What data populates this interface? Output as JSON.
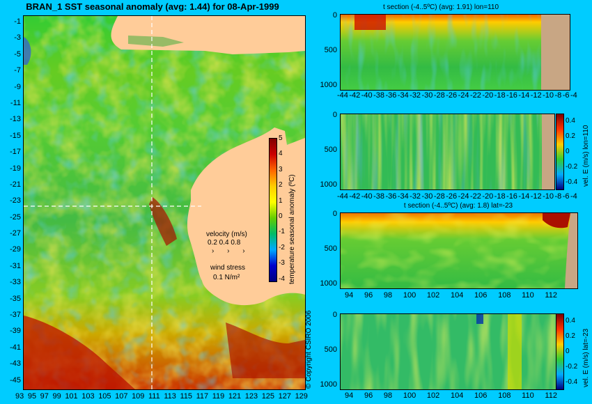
{
  "main_title": "BRAN_1 SST seasonal anomaly (avg: 1.44) for 08-Apr-1999",
  "copyright": "© Copyright CSIRO 2006",
  "map": {
    "lat_ticks": [
      "-1",
      "-3",
      "-5",
      "-7",
      "-9",
      "-11",
      "-13",
      "-15",
      "-17",
      "-19",
      "-21",
      "-23",
      "-25",
      "-27",
      "-29",
      "-31",
      "-33",
      "-35",
      "-37",
      "-39",
      "-41",
      "-43",
      "-45"
    ],
    "lon_ticks": [
      "93",
      "95",
      "97",
      "99",
      "101",
      "103",
      "105",
      "107",
      "109",
      "111",
      "113",
      "115",
      "117",
      "119",
      "121",
      "123",
      "125",
      "127",
      "129"
    ],
    "colorbar": {
      "label": "temperature seasonal anomaly (ºC)",
      "ticks": [
        "5",
        "4",
        "3",
        "2",
        "1",
        "0",
        "-1",
        "-2",
        "-3",
        "-4"
      ]
    },
    "velocity_legend": {
      "title": "velocity (m/s)",
      "values": "0.2 0.4 0.8"
    },
    "wind_legend": {
      "title": "wind stress",
      "value": "0.1 N/m²"
    },
    "section_lat": -23,
    "section_lon": 110
  },
  "panels": [
    {
      "title": "t section (-4..5ºC) (avg: 1.91) lon=110",
      "y_ticks": [
        "0",
        "500",
        "1000"
      ],
      "x_ticks": [
        "-44",
        "-42",
        "-40",
        "-38",
        "-36",
        "-34",
        "-32",
        "-30",
        "-28",
        "-26",
        "-24",
        "-22",
        "-20",
        "-18",
        "-16",
        "-14",
        "-12",
        "-10",
        "-8",
        "-6",
        "-4"
      ]
    },
    {
      "title": "",
      "y_ticks": [
        "0",
        "500",
        "1000"
      ],
      "x_ticks": [
        "-44",
        "-42",
        "-40",
        "-38",
        "-36",
        "-34",
        "-32",
        "-30",
        "-28",
        "-26",
        "-24",
        "-22",
        "-20",
        "-18",
        "-16",
        "-14",
        "-12",
        "-10",
        "-8",
        "-6",
        "-4"
      ],
      "colorbar": {
        "label": "vel. E (m/s) lon=110",
        "ticks": [
          "0.4",
          "0.2",
          "0",
          "-0.2",
          "-0.4"
        ]
      }
    },
    {
      "title": "t section (-4..5ºC) (avg: 1.8) lat=-23",
      "y_ticks": [
        "0",
        "500",
        "1000"
      ],
      "x_ticks": [
        "94",
        "96",
        "98",
        "100",
        "102",
        "104",
        "106",
        "108",
        "110",
        "112"
      ]
    },
    {
      "title": "",
      "y_ticks": [
        "0",
        "500",
        "1000"
      ],
      "x_ticks": [
        "94",
        "96",
        "98",
        "100",
        "102",
        "104",
        "106",
        "108",
        "110",
        "112"
      ],
      "colorbar": {
        "label": "vel. E (m/s) lat=-23",
        "ticks": [
          "0.4",
          "0.2",
          "0",
          "-0.2",
          "-0.4"
        ]
      }
    }
  ],
  "chart_data": [
    {
      "type": "heatmap",
      "title": "BRAN_1 SST seasonal anomaly (avg: 1.44) for 08-Apr-1999",
      "xlabel": "",
      "ylabel": "",
      "xlim": [
        93,
        130
      ],
      "ylim": [
        -45,
        0
      ],
      "colorbar_range": [
        -4,
        5
      ],
      "colorbar_label": "temperature seasonal anomaly (ºC)",
      "average": 1.44
    },
    {
      "type": "heatmap",
      "title": "t section (-4..5ºC) (avg: 1.91) lon=110",
      "xlim": [
        -45,
        -3
      ],
      "ylim": [
        1050,
        0
      ],
      "average": 1.91
    },
    {
      "type": "heatmap",
      "title": "",
      "xlim": [
        -45,
        -3
      ],
      "ylim": [
        1050,
        0
      ],
      "colorbar_range": [
        -0.5,
        0.5
      ],
      "colorbar_label": "vel. E (m/s) lon=110"
    },
    {
      "type": "heatmap",
      "title": "t section (-4..5ºC) (avg: 1.8) lat=-23",
      "xlim": [
        93,
        114
      ],
      "ylim": [
        1050,
        0
      ],
      "average": 1.8
    },
    {
      "type": "heatmap",
      "title": "",
      "xlim": [
        93,
        114
      ],
      "ylim": [
        1050,
        0
      ],
      "colorbar_range": [
        -0.5,
        0.5
      ],
      "colorbar_label": "vel. E (m/s) lat=-23"
    }
  ],
  "colors": {
    "background": "#00ccff",
    "land": "#ffcc99",
    "section_land": "#c8a684",
    "gridline": "#ffffff"
  }
}
